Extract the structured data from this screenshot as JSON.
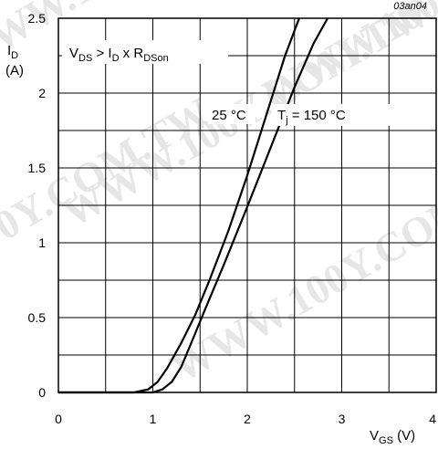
{
  "chart_data": {
    "type": "line",
    "reference": "03an04",
    "watermark": "WWW.100Y.COM.TW",
    "xlim": [
      0,
      4
    ],
    "ylim": [
      0,
      2.5
    ],
    "x_ticks": [
      {
        "value": 0,
        "label": "0"
      },
      {
        "value": 1,
        "label": "1"
      },
      {
        "value": 2,
        "label": "2"
      },
      {
        "value": 3,
        "label": "3"
      },
      {
        "value": 4,
        "label": "4"
      }
    ],
    "y_ticks": [
      {
        "value": 0,
        "label": "0"
      },
      {
        "value": 0.5,
        "label": "0.5"
      },
      {
        "value": 1,
        "label": "1"
      },
      {
        "value": 1.5,
        "label": "1.5"
      },
      {
        "value": 2,
        "label": "2"
      },
      {
        "value": 2.5,
        "label": "2.5"
      }
    ],
    "grid": true,
    "x_grid_step": 0.5,
    "y_grid_step": 0.25,
    "ylabel": {
      "main": "I",
      "sub": "D",
      "unit": "(A)"
    },
    "xlabel": {
      "main": "V",
      "sub": "GS",
      "unit": " (V)"
    },
    "condition": {
      "p1": "V",
      "s1": "DS",
      "p2": " > I",
      "s2": "D",
      "p3": " x R",
      "s3": "DSon"
    },
    "series": [
      {
        "name": "25 °C",
        "color": "#000000",
        "x": [
          0,
          0.8,
          0.95,
          1.05,
          1.15,
          1.3,
          1.45,
          1.6,
          1.8,
          2.0,
          2.2,
          2.4,
          2.55
        ],
        "y": [
          0,
          0,
          0.02,
          0.07,
          0.16,
          0.33,
          0.52,
          0.75,
          1.08,
          1.45,
          1.85,
          2.25,
          2.5
        ]
      },
      {
        "name": "T_j = 150 °C",
        "label_main": "T",
        "label_sub": "j",
        "label_rest": " = 150 °C",
        "color": "#000000",
        "x": [
          0,
          1.0,
          1.1,
          1.2,
          1.3,
          1.4,
          1.55,
          1.75,
          2.0,
          2.25,
          2.5,
          2.7,
          2.85
        ],
        "y": [
          0,
          0,
          0.02,
          0.07,
          0.17,
          0.32,
          0.55,
          0.85,
          1.24,
          1.64,
          2.04,
          2.33,
          2.5
        ]
      }
    ]
  }
}
